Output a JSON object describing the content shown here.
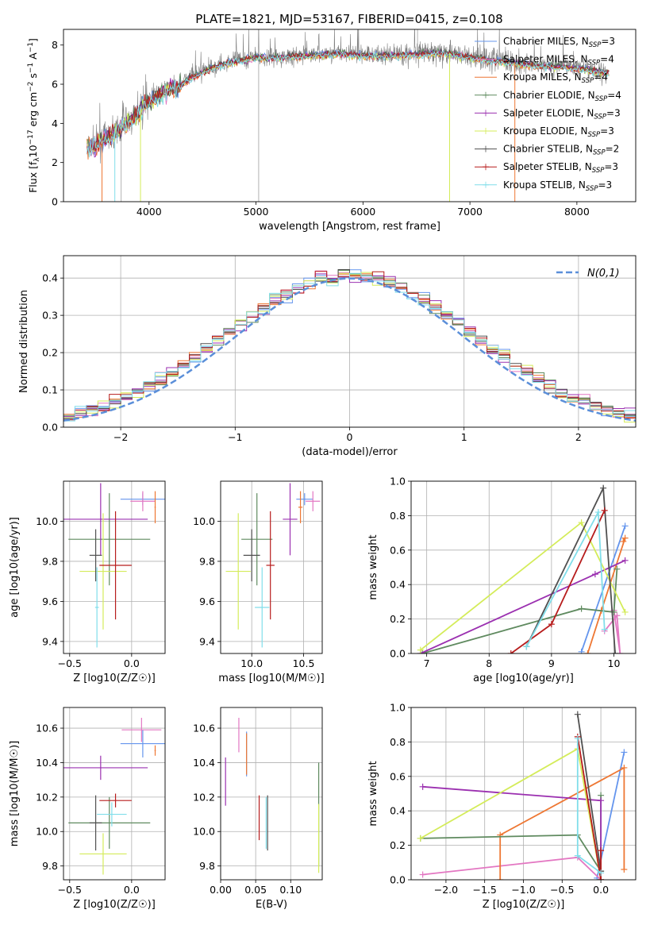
{
  "figure_title": "PLATE=1821, MJD=53167, FIBERID=0415, z=0.108",
  "colors": {
    "chabrier_miles": "#6495ed",
    "salpeter_miles": "#e377c2",
    "kroupa_miles": "#ee7733",
    "chabrier_elodie": "#5f8a5f",
    "salpeter_elodie": "#9b30b0",
    "kroupa_elodie": "#d4ec5a",
    "chabrier_stelib": "#505050",
    "salpeter_stelib": "#b71c1c",
    "kroupa_stelib": "#80deea",
    "data_gray": "#7f7f7f",
    "gaussian": "#5b8fd9"
  },
  "chart_data": [
    {
      "id": "spectrum",
      "type": "line",
      "xlabel": "wavelength [Angstrom, rest frame]",
      "ylabel": "Flux [f_λ10^-17 erg cm^-2 s^-1 A^-1]",
      "xlim": [
        3200,
        8550
      ],
      "ylim": [
        0,
        8.8
      ],
      "xticks": [
        4000,
        5000,
        6000,
        7000,
        8000
      ],
      "yticks": [
        0,
        2,
        4,
        6,
        8
      ],
      "grid": false,
      "legend_position": "right",
      "continuum": {
        "x": [
          3420,
          3500,
          3600,
          3700,
          3800,
          3900,
          4000,
          4100,
          4200,
          4300,
          4400,
          4600,
          4800,
          5000,
          5200,
          5500,
          5800,
          6000,
          6300,
          6600,
          6800,
          7000,
          7300,
          7600,
          7900,
          8100,
          8300
        ],
        "y": [
          2.8,
          2.9,
          3.3,
          3.6,
          4.1,
          4.6,
          5.2,
          5.5,
          5.8,
          6.0,
          6.4,
          6.9,
          7.2,
          7.4,
          7.4,
          7.5,
          7.6,
          7.5,
          7.5,
          7.6,
          7.6,
          7.4,
          7.2,
          7.0,
          6.9,
          6.8,
          6.6
        ]
      },
      "series": [
        {
          "name": "Chabrier MILES, N_SSP=3",
          "color": "#6495ed"
        },
        {
          "name": "Salpeter MILES, N_SSP=4",
          "color": "#e377c2"
        },
        {
          "name": "Kroupa MILES, N_SSP=4",
          "color": "#ee7733"
        },
        {
          "name": "Chabrier ELODIE, N_SSP=4",
          "color": "#5f8a5f"
        },
        {
          "name": "Salpeter ELODIE, N_SSP=3",
          "color": "#9b30b0"
        },
        {
          "name": "Kroupa ELODIE, N_SSP=3",
          "color": "#d4ec5a"
        },
        {
          "name": "Chabrier STELIB, N_SSP=2",
          "color": "#505050"
        },
        {
          "name": "Salpeter STELIB, N_SSP=3",
          "color": "#b71c1c"
        },
        {
          "name": "Kroupa STELIB, N_SSP=3",
          "color": "#80deea"
        }
      ]
    },
    {
      "id": "residuals",
      "type": "line",
      "xlabel": "(data-model)/error",
      "ylabel": "Normed distribution",
      "xlim": [
        -2.5,
        2.5
      ],
      "ylim": [
        0,
        0.46
      ],
      "xticks": [
        -2,
        -1,
        0,
        1,
        2
      ],
      "yticks": [
        0.0,
        0.1,
        0.2,
        0.3,
        0.4
      ],
      "grid": true,
      "legend_position": "top-right",
      "gaussian_label": "N(0,1)",
      "bin_width": 0.1
    },
    {
      "id": "age-vs-Z",
      "type": "scatter",
      "xlabel": "Z [log10(Z/Z☉)]",
      "ylabel": "age  [log10(age/yr)]",
      "xlim": [
        -0.55,
        0.27
      ],
      "ylim": [
        9.34,
        10.2
      ],
      "xticks": [
        -0.5,
        0.0
      ],
      "yticks": [
        9.4,
        9.6,
        9.8,
        10.0
      ],
      "grid": true,
      "points": [
        {
          "x": 0.09,
          "y": 10.11,
          "xerr": 0.18,
          "yerr": 0.03,
          "color": "#6495ed"
        },
        {
          "x": 0.09,
          "y": 10.1,
          "xerr": 0.1,
          "yerr": 0.05,
          "color": "#e377c2"
        },
        {
          "x": 0.19,
          "y": 10.07,
          "xerr": 0.005,
          "yerr": 0.08,
          "color": "#ee7733"
        },
        {
          "x": -0.18,
          "y": 9.91,
          "xerr": 0.33,
          "yerr": 0.23,
          "color": "#5f8a5f"
        },
        {
          "x": -0.25,
          "y": 10.01,
          "xerr": 0.38,
          "yerr": 0.18,
          "color": "#9b30b0"
        },
        {
          "x": -0.23,
          "y": 9.75,
          "xerr": 0.19,
          "yerr": 0.29,
          "color": "#d4ec5a"
        },
        {
          "x": -0.29,
          "y": 9.83,
          "xerr": 0.05,
          "yerr": 0.13,
          "color": "#505050"
        },
        {
          "x": -0.13,
          "y": 9.78,
          "xerr": 0.13,
          "yerr": 0.27,
          "color": "#b71c1c"
        },
        {
          "x": -0.28,
          "y": 9.57,
          "xerr": 0.015,
          "yerr": 0.2,
          "color": "#80deea"
        }
      ]
    },
    {
      "id": "age-vs-mass",
      "type": "scatter",
      "xlabel": "mass [log10(M/M☉)]",
      "ylabel": "",
      "xlim": [
        9.7,
        10.68
      ],
      "ylim": [
        9.34,
        10.2
      ],
      "xticks": [
        10.0,
        10.5
      ],
      "yticks": [
        9.4,
        9.6,
        9.8,
        10.0
      ],
      "grid": true,
      "points": [
        {
          "x": 10.51,
          "y": 10.11,
          "xerr": 0.08,
          "yerr": 0.03,
          "color": "#6495ed"
        },
        {
          "x": 10.59,
          "y": 10.1,
          "xerr": 0.07,
          "yerr": 0.05,
          "color": "#e377c2"
        },
        {
          "x": 10.47,
          "y": 10.07,
          "xerr": 0.02,
          "yerr": 0.08,
          "color": "#ee7733"
        },
        {
          "x": 10.05,
          "y": 9.91,
          "xerr": 0.15,
          "yerr": 0.23,
          "color": "#5f8a5f"
        },
        {
          "x": 10.37,
          "y": 10.01,
          "xerr": 0.07,
          "yerr": 0.18,
          "color": "#9b30b0"
        },
        {
          "x": 9.87,
          "y": 9.75,
          "xerr": 0.12,
          "yerr": 0.29,
          "color": "#d4ec5a"
        },
        {
          "x": 10.0,
          "y": 9.83,
          "xerr": 0.08,
          "yerr": 0.13,
          "color": "#505050"
        },
        {
          "x": 10.18,
          "y": 9.78,
          "xerr": 0.04,
          "yerr": 0.27,
          "color": "#b71c1c"
        },
        {
          "x": 10.1,
          "y": 9.57,
          "xerr": 0.07,
          "yerr": 0.2,
          "color": "#80deea"
        }
      ]
    },
    {
      "id": "weight-vs-age",
      "type": "line",
      "xlabel": "age  [log10(age/yr)]",
      "ylabel": "mass weight",
      "xlim": [
        6.75,
        10.35
      ],
      "ylim": [
        0,
        1.0
      ],
      "xticks": [
        7,
        8,
        9,
        10
      ],
      "yticks": [
        0.0,
        0.2,
        0.4,
        0.6,
        0.8,
        1.0
      ],
      "grid": true,
      "series": [
        {
          "color": "#6495ed",
          "x": [
            9.48,
            10.18
          ],
          "y": [
            0.01,
            0.74
          ]
        },
        {
          "color": "#e377c2",
          "x": [
            9.85,
            10.05,
            10.1,
            10.0
          ],
          "y": [
            0.13,
            0.22,
            0.0,
            0.25
          ]
        },
        {
          "color": "#ee7733",
          "x": [
            9.58,
            9.8,
            10.18,
            10.15
          ],
          "y": [
            0.0,
            0.25,
            0.67,
            0.65
          ]
        },
        {
          "color": "#5f8a5f",
          "x": [
            6.93,
            9.48,
            10.0,
            10.05
          ],
          "y": [
            0.0,
            0.26,
            0.24,
            0.49
          ]
        },
        {
          "color": "#9b30b0",
          "x": [
            6.9,
            9.7,
            10.18
          ],
          "y": [
            0.0,
            0.46,
            0.54
          ]
        },
        {
          "color": "#d4ec5a",
          "x": [
            6.9,
            9.48,
            10.18
          ],
          "y": [
            0.02,
            0.76,
            0.24
          ]
        },
        {
          "color": "#505050",
          "x": [
            8.6,
            9.83,
            10.02
          ],
          "y": [
            0.04,
            0.96,
            0.0
          ]
        },
        {
          "color": "#b71c1c",
          "x": [
            8.35,
            9.0,
            9.85
          ],
          "y": [
            0.0,
            0.17,
            0.83
          ]
        },
        {
          "color": "#80deea",
          "x": [
            8.6,
            9.75,
            9.85
          ],
          "y": [
            0.04,
            0.82,
            0.14
          ]
        }
      ]
    },
    {
      "id": "mass-vs-Z",
      "type": "scatter",
      "xlabel": "Z [log10(Z/Z☉)]",
      "ylabel": "mass [log10(M/M☉)]",
      "xlim": [
        -0.55,
        0.27
      ],
      "ylim": [
        9.72,
        10.72
      ],
      "xticks": [
        -0.5,
        0.0
      ],
      "yticks": [
        9.8,
        10.0,
        10.2,
        10.4,
        10.6
      ],
      "grid": true,
      "points": [
        {
          "x": 0.09,
          "y": 10.51,
          "xerr": 0.18,
          "yerr": 0.08,
          "color": "#6495ed"
        },
        {
          "x": 0.08,
          "y": 10.59,
          "xerr": 0.16,
          "yerr": 0.07,
          "color": "#e377c2"
        },
        {
          "x": 0.19,
          "y": 10.47,
          "xerr": 0.005,
          "yerr": 0.03,
          "color": "#ee7733"
        },
        {
          "x": -0.18,
          "y": 10.05,
          "xerr": 0.33,
          "yerr": 0.15,
          "color": "#5f8a5f"
        },
        {
          "x": -0.25,
          "y": 10.37,
          "xerr": 0.38,
          "yerr": 0.07,
          "color": "#9b30b0"
        },
        {
          "x": -0.23,
          "y": 9.87,
          "xerr": 0.19,
          "yerr": 0.12,
          "color": "#d4ec5a"
        },
        {
          "x": -0.29,
          "y": 10.05,
          "xerr": 0.05,
          "yerr": 0.16,
          "color": "#505050"
        },
        {
          "x": -0.13,
          "y": 10.18,
          "xerr": 0.13,
          "yerr": 0.04,
          "color": "#b71c1c"
        },
        {
          "x": -0.16,
          "y": 10.1,
          "xerr": 0.12,
          "yerr": 0.07,
          "color": "#80deea"
        }
      ]
    },
    {
      "id": "mass-vs-ebv",
      "type": "scatter",
      "xlabel": "E(B-V)",
      "ylabel": "",
      "xlim": [
        0.0,
        0.145
      ],
      "ylim": [
        9.72,
        10.72
      ],
      "xticks": [
        0.0,
        0.05,
        0.1
      ],
      "yticks": [
        9.8,
        10.0,
        10.2,
        10.4,
        10.6
      ],
      "grid": true,
      "points": [
        {
          "x": 0.037,
          "y": 10.45,
          "xerr": 0,
          "yerr": 0.13,
          "color": "#6495ed"
        },
        {
          "x": 0.026,
          "y": 10.56,
          "xerr": 0,
          "yerr": 0.1,
          "color": "#e377c2"
        },
        {
          "x": 0.037,
          "y": 10.45,
          "xerr": 0,
          "yerr": 0.12,
          "color": "#ee7733"
        },
        {
          "x": 0.14,
          "y": 10.1,
          "xerr": 0,
          "yerr": 0.3,
          "color": "#5f8a5f"
        },
        {
          "x": 0.007,
          "y": 10.29,
          "xerr": 0,
          "yerr": 0.14,
          "color": "#9b30b0"
        },
        {
          "x": 0.14,
          "y": 9.96,
          "xerr": 0,
          "yerr": 0.2,
          "color": "#d4ec5a"
        },
        {
          "x": 0.067,
          "y": 10.05,
          "xerr": 0,
          "yerr": 0.16,
          "color": "#505050"
        },
        {
          "x": 0.055,
          "y": 10.08,
          "xerr": 0,
          "yerr": 0.13,
          "color": "#b71c1c"
        },
        {
          "x": 0.065,
          "y": 10.05,
          "xerr": 0,
          "yerr": 0.15,
          "color": "#80deea"
        }
      ]
    },
    {
      "id": "weight-vs-Z",
      "type": "line",
      "xlabel": "Z [log10(Z/Z☉)]",
      "ylabel": "mass weight",
      "xlim": [
        -2.45,
        0.45
      ],
      "ylim": [
        0,
        1.0
      ],
      "xticks": [
        -2.0,
        -1.5,
        -1.0,
        -0.5,
        0.0
      ],
      "yticks": [
        0.0,
        0.2,
        0.4,
        0.6,
        0.8,
        1.0
      ],
      "grid": true,
      "series": [
        {
          "color": "#6495ed",
          "x": [
            -0.05,
            0.3
          ],
          "y": [
            0.01,
            0.74
          ]
        },
        {
          "color": "#e377c2",
          "x": [
            -2.3,
            -0.3,
            0.0
          ],
          "y": [
            0.03,
            0.13,
            0.0
          ]
        },
        {
          "color": "#ee7733",
          "x": [
            -1.3,
            -1.3,
            0.3,
            0.3
          ],
          "y": [
            0.0,
            0.26,
            0.65,
            0.06
          ]
        },
        {
          "color": "#5f8a5f",
          "x": [
            -2.33,
            -0.3,
            0.0,
            0.0
          ],
          "y": [
            0.24,
            0.26,
            0.05,
            0.49
          ]
        },
        {
          "color": "#9b30b0",
          "x": [
            -2.3,
            0.0,
            0.0
          ],
          "y": [
            0.54,
            0.46,
            0.0
          ]
        },
        {
          "color": "#d4ec5a",
          "x": [
            -2.33,
            -0.3,
            0.0
          ],
          "y": [
            0.24,
            0.76,
            0.0
          ]
        },
        {
          "color": "#505050",
          "x": [
            -0.3,
            0.0,
            0.0
          ],
          "y": [
            0.96,
            0.05,
            0.0
          ]
        },
        {
          "color": "#b71c1c",
          "x": [
            -0.3,
            0.0,
            0.0
          ],
          "y": [
            0.83,
            0.0,
            0.17
          ]
        },
        {
          "color": "#80deea",
          "x": [
            -0.3,
            -0.3,
            0.0
          ],
          "y": [
            0.82,
            0.14,
            0.04
          ]
        }
      ]
    }
  ]
}
